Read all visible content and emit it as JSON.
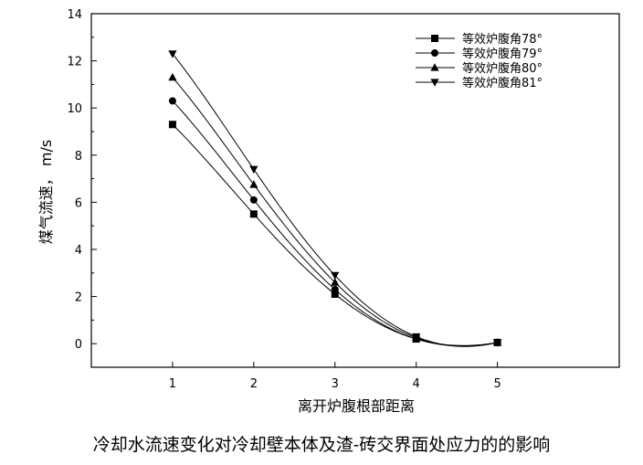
{
  "caption": "冷却水流速变化对冷却壁本体及渣-砖交界面处应力的的影响",
  "chart_data": {
    "type": "line",
    "title": "",
    "xlabel": "离开炉腹根部距离",
    "ylabel": "煤气流速， m/s",
    "xlim": [
      0.0,
      6.5
    ],
    "ylim": [
      -1,
      14
    ],
    "x_ticks": [
      1,
      2,
      3,
      4,
      5
    ],
    "y_ticks": [
      0,
      2,
      4,
      6,
      8,
      10,
      12,
      14
    ],
    "grid": false,
    "legend_position": "top-right",
    "x": [
      1,
      2,
      3,
      4,
      5
    ],
    "series": [
      {
        "name": "等效炉腹角78°",
        "marker": "square",
        "values": [
          9.3,
          5.5,
          2.1,
          0.2,
          0.05
        ]
      },
      {
        "name": "等效炉腹角79°",
        "marker": "circle",
        "values": [
          10.3,
          6.1,
          2.3,
          0.2,
          0.05
        ]
      },
      {
        "name": "等效炉腹角80°",
        "marker": "triangle-up",
        "values": [
          11.3,
          6.75,
          2.6,
          0.25,
          0.05
        ]
      },
      {
        "name": "等效炉腹角81°",
        "marker": "triangle-down",
        "values": [
          12.3,
          7.4,
          2.9,
          0.3,
          0.05
        ]
      }
    ]
  }
}
